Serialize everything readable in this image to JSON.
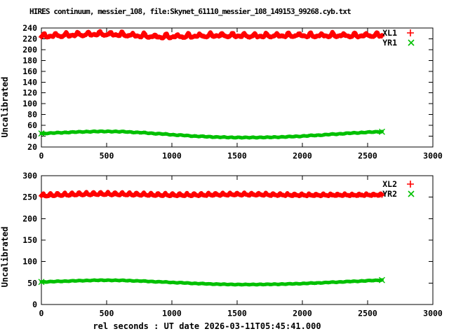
{
  "title": "HIRES continuum, messier_108, file:Skynet_61110_messier_108_149153_99268.cyb.txt",
  "xlabel": "rel seconds : UT date 2026-03-11T05:45:41.000",
  "colors": {
    "red": "#ff0000",
    "green": "#00c000",
    "axis": "#000000",
    "background": "#ffffff"
  },
  "chart_data": [
    {
      "type": "scatter",
      "panel": "top",
      "ylabel": "Uncalibrated",
      "xlim": [
        0,
        3000
      ],
      "ylim": [
        20,
        240
      ],
      "xticks": [
        0,
        500,
        1000,
        1500,
        2000,
        2500,
        3000
      ],
      "yticks": [
        20,
        40,
        60,
        80,
        100,
        120,
        140,
        160,
        180,
        200,
        220,
        240
      ],
      "grid": false,
      "legend_position": "top-right-inside",
      "x": [
        0,
        150,
        300,
        450,
        600,
        750,
        900,
        1050,
        1200,
        1350,
        1500,
        1650,
        1800,
        1950,
        2100,
        2250,
        2400,
        2550,
        2610
      ],
      "series": [
        {
          "name": "XL1",
          "color": "#ff0000",
          "marker": "+",
          "y": [
            223.5,
            225,
            226.5,
            227.5,
            226.5,
            224.5,
            222.5,
            223,
            224,
            225,
            224.5,
            224,
            224.5,
            225,
            224.5,
            225,
            224.5,
            225,
            225.5
          ],
          "band": 4,
          "jitter": 1.0,
          "texture": {
            "period": 85,
            "amp": 6
          }
        },
        {
          "name": "YR1",
          "color": "#00c000",
          "marker": "x",
          "y": [
            45,
            46.5,
            48,
            48.8,
            48.5,
            46.8,
            44.5,
            42,
            39.8,
            38.3,
            37.5,
            37.6,
            38.2,
            39.5,
            41.5,
            43.8,
            46,
            47.8,
            48.2
          ],
          "band": 3.2,
          "jitter": 0.5
        }
      ]
    },
    {
      "type": "scatter",
      "panel": "bottom",
      "ylabel": "Uncalibrated",
      "xlim": [
        0,
        3000
      ],
      "ylim": [
        0,
        300
      ],
      "xticks": [
        0,
        500,
        1000,
        1500,
        2000,
        2500,
        3000
      ],
      "yticks": [
        0,
        50,
        100,
        150,
        200,
        250,
        300
      ],
      "grid": false,
      "legend_position": "top-right-inside",
      "x": [
        0,
        150,
        300,
        450,
        600,
        750,
        900,
        1050,
        1200,
        1350,
        1500,
        1650,
        1800,
        1950,
        2100,
        2250,
        2400,
        2550,
        2610
      ],
      "series": [
        {
          "name": "XL2",
          "color": "#ff0000",
          "marker": "+",
          "y": [
            253,
            254.5,
            256,
            256.5,
            256,
            255.2,
            254.3,
            254,
            254.3,
            255,
            255.5,
            255.2,
            254.5,
            254,
            253.8,
            254,
            254,
            254.3,
            254.5
          ],
          "band": 5,
          "jitter": 0.9,
          "texture": {
            "period": 55,
            "amp": 4.5
          }
        },
        {
          "name": "YR2",
          "color": "#00c000",
          "marker": "x",
          "y": [
            52.5,
            54,
            55.5,
            56.5,
            56.2,
            54.8,
            52.8,
            50.8,
            48.8,
            47.3,
            46.5,
            46.6,
            47.2,
            48.3,
            50,
            52,
            54,
            56,
            56.8
          ],
          "band": 4,
          "jitter": 0.5
        }
      ]
    }
  ]
}
